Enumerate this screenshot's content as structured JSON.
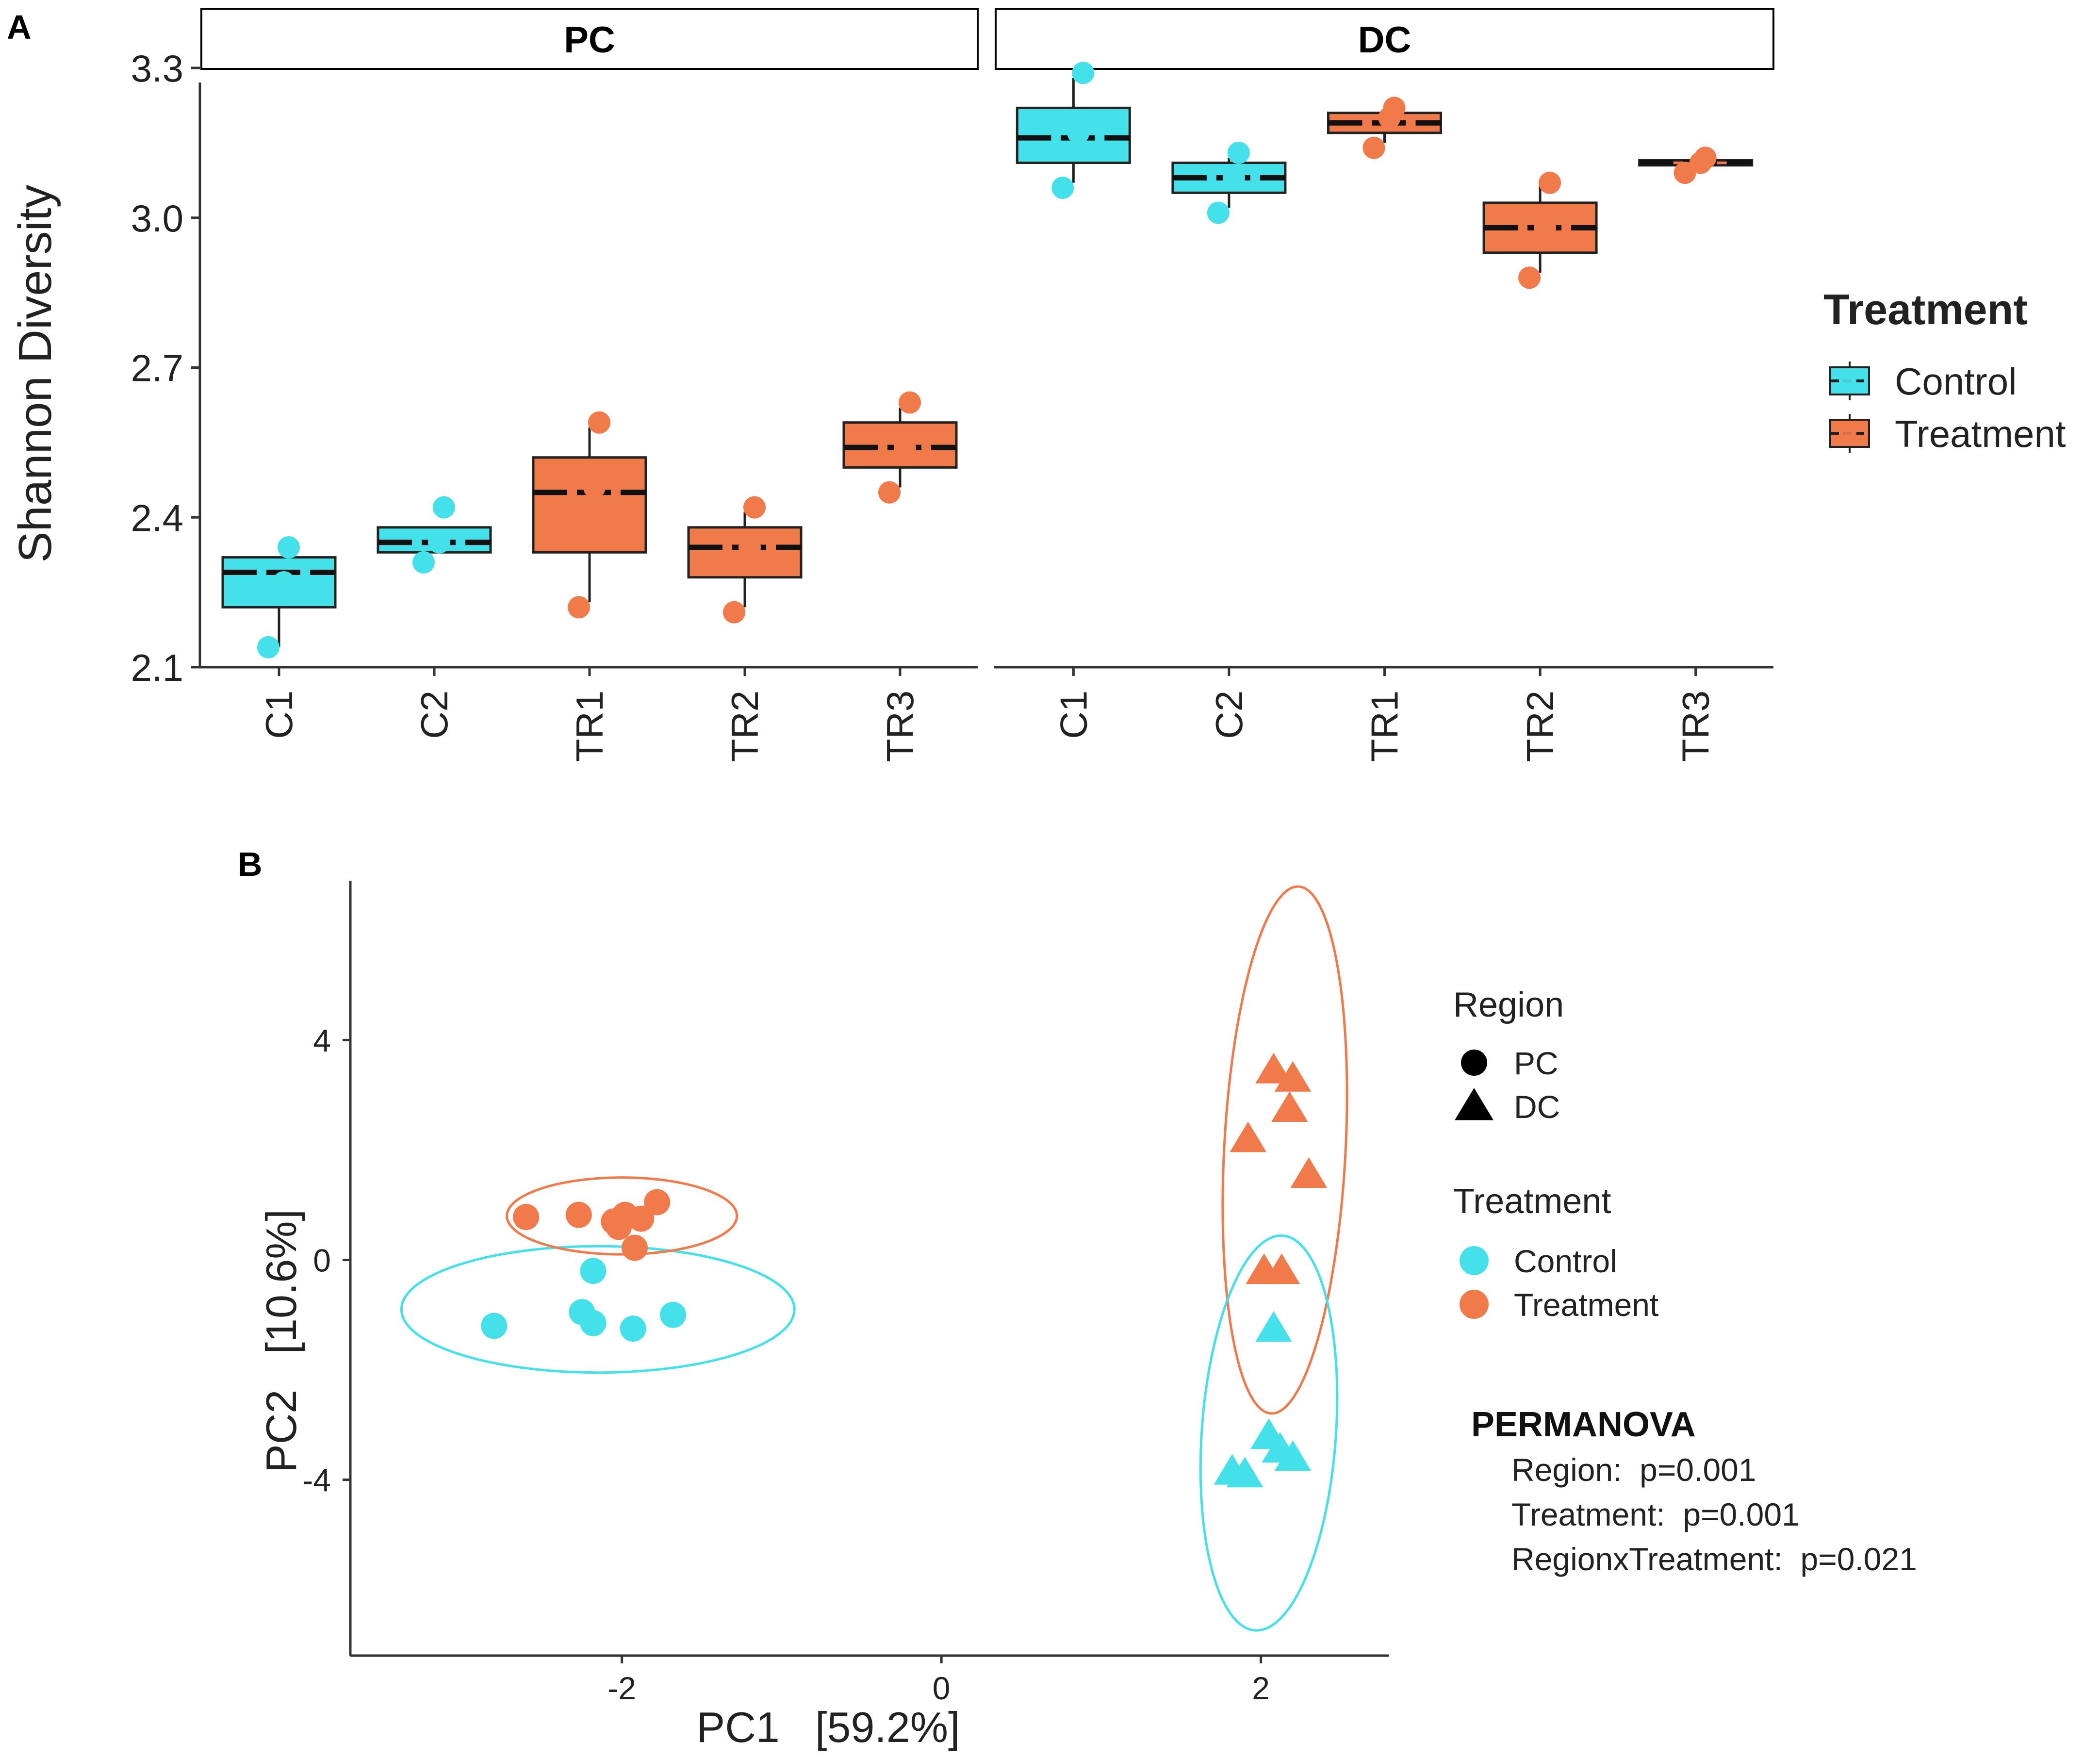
{
  "colors": {
    "control": "#45E1EA",
    "treatment": "#F07A4A",
    "axis": "#333333",
    "panel_border": "#000000"
  },
  "chart_data": [
    {
      "panel_label": "A",
      "type": "box",
      "ylabel": "Shannon Diversity",
      "xlabel": "",
      "ylim": [
        2.1,
        3.3
      ],
      "yticks": [
        2.1,
        2.4,
        2.7,
        3.0,
        3.3
      ],
      "ytick_labels": [
        "2.1",
        "2.4",
        "2.7",
        "3.0",
        "3.3"
      ],
      "legend": {
        "title": "Treatment",
        "entries": [
          {
            "label": "Control",
            "group": "control"
          },
          {
            "label": "Treatment",
            "group": "treatment"
          }
        ],
        "position": "right"
      },
      "facets": [
        {
          "name": "PC",
          "categories": [
            "C1",
            "C2",
            "TR1",
            "TR2",
            "TR3"
          ],
          "boxes": [
            {
              "category": "C1",
              "group": "control",
              "q1": 2.22,
              "median": 2.29,
              "q3": 2.32,
              "whisker_low": 2.14,
              "whisker_high": 2.32,
              "points": [
                2.14,
                2.27,
                2.34
              ]
            },
            {
              "category": "C2",
              "group": "control",
              "q1": 2.33,
              "median": 2.35,
              "q3": 2.38,
              "whisker_low": 2.33,
              "whisker_high": 2.38,
              "points": [
                2.31,
                2.35,
                2.42
              ]
            },
            {
              "category": "TR1",
              "group": "treatment",
              "q1": 2.33,
              "median": 2.45,
              "q3": 2.52,
              "whisker_low": 2.23,
              "whisker_high": 2.58,
              "points": [
                2.22,
                2.46,
                2.59
              ]
            },
            {
              "category": "TR2",
              "group": "treatment",
              "q1": 2.28,
              "median": 2.34,
              "q3": 2.38,
              "whisker_low": 2.22,
              "whisker_high": 2.41,
              "points": [
                2.21,
                2.34,
                2.42
              ]
            },
            {
              "category": "TR3",
              "group": "treatment",
              "q1": 2.5,
              "median": 2.54,
              "q3": 2.59,
              "whisker_low": 2.46,
              "whisker_high": 2.62,
              "points": [
                2.45,
                2.54,
                2.63
              ]
            }
          ]
        },
        {
          "name": "DC",
          "categories": [
            "C1",
            "C2",
            "TR1",
            "TR2",
            "TR3"
          ],
          "boxes": [
            {
              "category": "C1",
              "group": "control",
              "q1": 3.11,
              "median": 3.16,
              "q3": 3.22,
              "whisker_low": 3.07,
              "whisker_high": 3.28,
              "points": [
                3.06,
                3.17,
                3.29
              ]
            },
            {
              "category": "C2",
              "group": "control",
              "q1": 3.05,
              "median": 3.08,
              "q3": 3.11,
              "whisker_low": 3.02,
              "whisker_high": 3.12,
              "points": [
                3.01,
                3.08,
                3.13
              ]
            },
            {
              "category": "TR1",
              "group": "treatment",
              "q1": 3.17,
              "median": 3.19,
              "q3": 3.21,
              "whisker_low": 3.15,
              "whisker_high": 3.21,
              "points": [
                3.14,
                3.2,
                3.22
              ]
            },
            {
              "category": "TR2",
              "group": "treatment",
              "q1": 2.93,
              "median": 2.98,
              "q3": 3.03,
              "whisker_low": 2.89,
              "whisker_high": 3.07,
              "points": [
                2.88,
                2.98,
                3.07
              ]
            },
            {
              "category": "TR3",
              "group": "treatment",
              "q1": 3.105,
              "median": 3.11,
              "q3": 3.115,
              "whisker_low": 3.1,
              "whisker_high": 3.12,
              "points": [
                3.09,
                3.11,
                3.12
              ]
            }
          ]
        }
      ]
    },
    {
      "panel_label": "B",
      "type": "scatter",
      "xlabel": "PC1   [59.2%]",
      "ylabel": "PC2   [10.6%]",
      "xlim": [
        -3.7,
        2.8
      ],
      "ylim": [
        -7.2,
        6.9
      ],
      "xticks": [
        -2,
        0,
        2
      ],
      "xtick_labels": [
        "-2",
        "0",
        "2"
      ],
      "yticks": [
        4,
        0,
        -4
      ],
      "ytick_labels": [
        "4",
        "0",
        "-4"
      ],
      "legend_region": {
        "title": "Region",
        "entries": [
          {
            "label": "PC",
            "shape": "circle"
          },
          {
            "label": "DC",
            "shape": "triangle"
          }
        ]
      },
      "legend_treatment": {
        "title": "Treatment",
        "entries": [
          {
            "label": "Control",
            "group": "control"
          },
          {
            "label": "Treatment",
            "group": "treatment"
          }
        ]
      },
      "annotation": {
        "title": "PERMANOVA",
        "lines": [
          "Region:  p=0.001",
          "Treatment:  p=0.001",
          "RegionxTreatment:  p=0.021"
        ]
      },
      "points": [
        {
          "x": -2.8,
          "y": -1.2,
          "region": "PC",
          "group": "control"
        },
        {
          "x": -2.25,
          "y": -0.95,
          "region": "PC",
          "group": "control"
        },
        {
          "x": -2.18,
          "y": -1.15,
          "region": "PC",
          "group": "control"
        },
        {
          "x": -1.93,
          "y": -1.25,
          "region": "PC",
          "group": "control"
        },
        {
          "x": -1.68,
          "y": -1.0,
          "region": "PC",
          "group": "control"
        },
        {
          "x": -2.18,
          "y": -0.2,
          "region": "PC",
          "group": "control"
        },
        {
          "x": -2.6,
          "y": 0.78,
          "region": "PC",
          "group": "treatment"
        },
        {
          "x": -2.27,
          "y": 0.82,
          "region": "PC",
          "group": "treatment"
        },
        {
          "x": -2.05,
          "y": 0.7,
          "region": "PC",
          "group": "treatment"
        },
        {
          "x": -1.98,
          "y": 0.82,
          "region": "PC",
          "group": "treatment"
        },
        {
          "x": -1.88,
          "y": 0.75,
          "region": "PC",
          "group": "treatment"
        },
        {
          "x": -1.78,
          "y": 1.05,
          "region": "PC",
          "group": "treatment"
        },
        {
          "x": -2.02,
          "y": 0.6,
          "region": "PC",
          "group": "treatment"
        },
        {
          "x": -1.92,
          "y": 0.22,
          "region": "PC",
          "group": "treatment"
        },
        {
          "x": 2.08,
          "y": 3.45,
          "region": "DC",
          "group": "treatment"
        },
        {
          "x": 2.2,
          "y": 3.3,
          "region": "DC",
          "group": "treatment"
        },
        {
          "x": 2.18,
          "y": 2.75,
          "region": "DC",
          "group": "treatment"
        },
        {
          "x": 1.92,
          "y": 2.2,
          "region": "DC",
          "group": "treatment"
        },
        {
          "x": 2.3,
          "y": 1.55,
          "region": "DC",
          "group": "treatment"
        },
        {
          "x": 2.02,
          "y": -0.2,
          "region": "DC",
          "group": "treatment"
        },
        {
          "x": 2.13,
          "y": -0.2,
          "region": "DC",
          "group": "treatment"
        },
        {
          "x": 2.08,
          "y": -1.25,
          "region": "DC",
          "group": "control"
        },
        {
          "x": 1.82,
          "y": -3.85,
          "region": "DC",
          "group": "control"
        },
        {
          "x": 1.9,
          "y": -3.9,
          "region": "DC",
          "group": "control"
        },
        {
          "x": 2.05,
          "y": -3.2,
          "region": "DC",
          "group": "control"
        },
        {
          "x": 2.12,
          "y": -3.45,
          "region": "DC",
          "group": "control"
        },
        {
          "x": 2.2,
          "y": -3.6,
          "region": "DC",
          "group": "control"
        }
      ],
      "ellipses": [
        {
          "group": "control",
          "region": "PC",
          "cx": -2.15,
          "cy": -0.9,
          "rx": 1.23,
          "ry": 1.15,
          "angle": 0
        },
        {
          "group": "treatment",
          "region": "PC",
          "cx": -2.0,
          "cy": 0.8,
          "rx": 0.72,
          "ry": 0.7,
          "angle": 0
        },
        {
          "group": "treatment",
          "region": "DC",
          "cx": 2.15,
          "cy": 2.0,
          "rx": 0.38,
          "ry": 4.8,
          "angle": 3
        },
        {
          "group": "control",
          "region": "DC",
          "cx": 2.05,
          "cy": -3.15,
          "rx": 0.42,
          "ry": 3.6,
          "angle": 4
        }
      ]
    }
  ]
}
